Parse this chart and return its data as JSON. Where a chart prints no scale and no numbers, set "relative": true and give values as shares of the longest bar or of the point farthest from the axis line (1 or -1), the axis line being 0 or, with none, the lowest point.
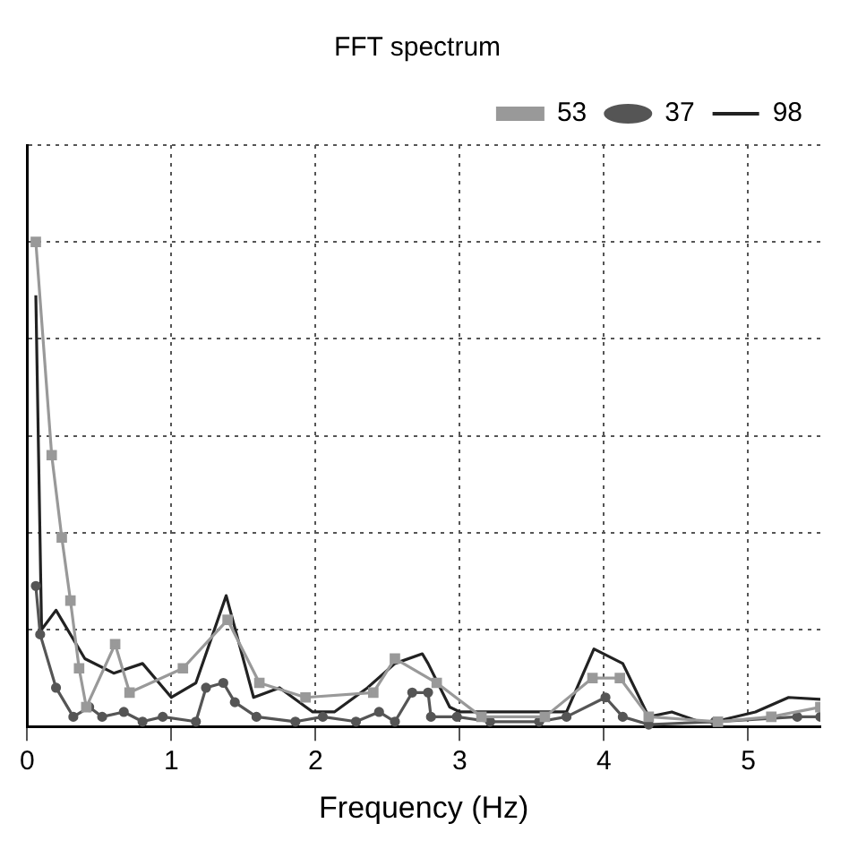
{
  "chart_data": {
    "type": "line",
    "title": "FFT spectrum",
    "xlabel": "Frequency (Hz)",
    "relative": true,
    "xlim": [
      0,
      5.5
    ],
    "xticks": [
      0,
      1,
      2,
      3,
      4,
      5
    ],
    "grid": true,
    "legend": "top right",
    "line_style": "solid",
    "series": [
      {
        "name": "37",
        "color": "#555555",
        "marker": "circle",
        "x": [
          0.06,
          0.09,
          0.2,
          0.32,
          0.43,
          0.52,
          0.67,
          0.8,
          0.94,
          1.17,
          1.24,
          1.36,
          1.44,
          1.59,
          1.86,
          2.05,
          2.28,
          2.44,
          2.55,
          2.67,
          2.78,
          2.8,
          2.98,
          3.21,
          3.55,
          3.74,
          4.01,
          4.13,
          4.31,
          4.77,
          5.34,
          5.5
        ],
        "values": [
          0.29,
          0.19,
          0.08,
          0.02,
          0.04,
          0.02,
          0.03,
          0.01,
          0.02,
          0.01,
          0.08,
          0.09,
          0.05,
          0.02,
          0.01,
          0.02,
          0.01,
          0.03,
          0.01,
          0.07,
          0.07,
          0.02,
          0.02,
          0.01,
          0.01,
          0.02,
          0.06,
          0.02,
          0.004,
          0.01,
          0.02,
          0.02
        ]
      },
      {
        "name": "53",
        "color": "#999999",
        "marker": "square",
        "x": [
          0.06,
          0.17,
          0.24,
          0.3,
          0.36,
          0.41,
          0.61,
          0.71,
          1.08,
          1.39,
          1.61,
          1.93,
          2.4,
          2.55,
          2.84,
          3.15,
          3.59,
          3.92,
          4.11,
          4.31,
          4.79,
          5.16,
          5.5
        ],
        "values": [
          1.0,
          0.56,
          0.39,
          0.26,
          0.12,
          0.04,
          0.17,
          0.07,
          0.12,
          0.22,
          0.09,
          0.06,
          0.07,
          0.14,
          0.09,
          0.02,
          0.02,
          0.1,
          0.1,
          0.02,
          0.01,
          0.02,
          0.04
        ]
      },
      {
        "name": "98",
        "color": "#222222",
        "marker": "none",
        "x": [
          0.06,
          0.1,
          0.2,
          0.4,
          0.6,
          0.8,
          1.0,
          1.17,
          1.38,
          1.57,
          1.75,
          1.98,
          2.13,
          2.36,
          2.55,
          2.74,
          2.78,
          2.93,
          3.0,
          3.28,
          3.55,
          3.74,
          3.93,
          4.13,
          4.31,
          4.47,
          4.66,
          4.77,
          5.05,
          5.28,
          5.5
        ],
        "values": [
          0.89,
          0.2,
          0.24,
          0.14,
          0.11,
          0.13,
          0.06,
          0.09,
          0.27,
          0.06,
          0.08,
          0.03,
          0.03,
          0.08,
          0.13,
          0.15,
          0.13,
          0.04,
          0.03,
          0.03,
          0.03,
          0.03,
          0.16,
          0.13,
          0.02,
          0.03,
          0.01,
          0.01,
          0.03,
          0.06,
          0.056
        ]
      }
    ]
  }
}
